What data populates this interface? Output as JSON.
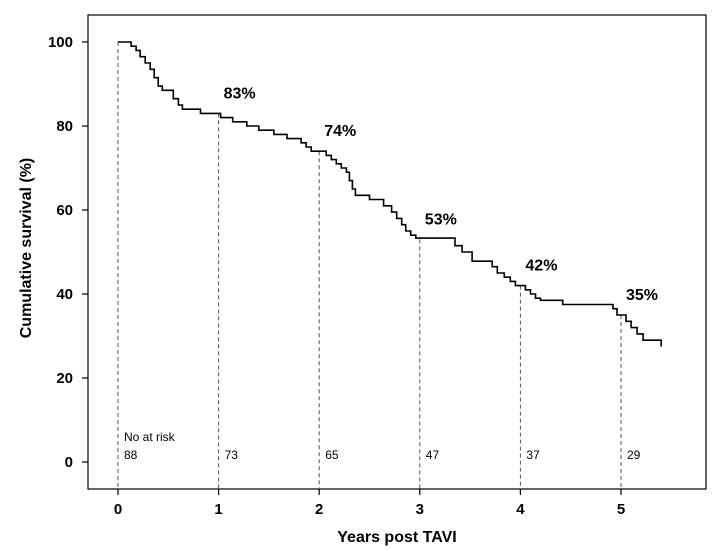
{
  "chart_data": {
    "type": "line",
    "subtype": "kaplan-meier step curve",
    "title": "",
    "xlabel": "Years post TAVI",
    "ylabel": "Cumulative survival (%)",
    "xlim": [
      -0.1,
      5.5
    ],
    "ylim": [
      -2,
      102
    ],
    "x_ticks": [
      0,
      1,
      2,
      3,
      4,
      5
    ],
    "y_ticks": [
      0,
      20,
      40,
      60,
      80,
      100
    ],
    "grid": false,
    "series": [
      {
        "color": "#000000",
        "points": [
          [
            0,
            100
          ],
          [
            0.13,
            100
          ],
          [
            0.13,
            99
          ],
          [
            0.18,
            99
          ],
          [
            0.18,
            98
          ],
          [
            0.22,
            98
          ],
          [
            0.22,
            96.5
          ],
          [
            0.27,
            96.5
          ],
          [
            0.27,
            95
          ],
          [
            0.32,
            95
          ],
          [
            0.32,
            93.5
          ],
          [
            0.36,
            93.5
          ],
          [
            0.36,
            91.5
          ],
          [
            0.4,
            91.5
          ],
          [
            0.4,
            89.5
          ],
          [
            0.44,
            89.5
          ],
          [
            0.44,
            88.5
          ],
          [
            0.55,
            88.5
          ],
          [
            0.55,
            86.5
          ],
          [
            0.6,
            86.5
          ],
          [
            0.6,
            85
          ],
          [
            0.64,
            85
          ],
          [
            0.64,
            84
          ],
          [
            0.82,
            84
          ],
          [
            0.82,
            83
          ],
          [
            1.02,
            83
          ],
          [
            1.02,
            82
          ],
          [
            1.14,
            82
          ],
          [
            1.14,
            81
          ],
          [
            1.28,
            81
          ],
          [
            1.28,
            80
          ],
          [
            1.4,
            80
          ],
          [
            1.4,
            79
          ],
          [
            1.55,
            79
          ],
          [
            1.55,
            78
          ],
          [
            1.68,
            78
          ],
          [
            1.68,
            77
          ],
          [
            1.82,
            77
          ],
          [
            1.82,
            76
          ],
          [
            1.87,
            76
          ],
          [
            1.87,
            75
          ],
          [
            1.92,
            75
          ],
          [
            1.92,
            74
          ],
          [
            2.07,
            74
          ],
          [
            2.07,
            73
          ],
          [
            2.12,
            73
          ],
          [
            2.12,
            72
          ],
          [
            2.17,
            72
          ],
          [
            2.17,
            71
          ],
          [
            2.22,
            71
          ],
          [
            2.22,
            70
          ],
          [
            2.27,
            70
          ],
          [
            2.27,
            69
          ],
          [
            2.3,
            69
          ],
          [
            2.3,
            67
          ],
          [
            2.33,
            67
          ],
          [
            2.33,
            65
          ],
          [
            2.36,
            65
          ],
          [
            2.36,
            63.5
          ],
          [
            2.5,
            63.5
          ],
          [
            2.5,
            62.5
          ],
          [
            2.64,
            62.5
          ],
          [
            2.64,
            61
          ],
          [
            2.72,
            61
          ],
          [
            2.72,
            59.5
          ],
          [
            2.77,
            59.5
          ],
          [
            2.77,
            58
          ],
          [
            2.82,
            58
          ],
          [
            2.82,
            56.5
          ],
          [
            2.86,
            56.5
          ],
          [
            2.86,
            55
          ],
          [
            2.91,
            55
          ],
          [
            2.91,
            54
          ],
          [
            2.96,
            54
          ],
          [
            2.96,
            53.3
          ],
          [
            3.35,
            53.3
          ],
          [
            3.35,
            51.5
          ],
          [
            3.42,
            51.5
          ],
          [
            3.42,
            50
          ],
          [
            3.52,
            50
          ],
          [
            3.52,
            47.8
          ],
          [
            3.72,
            47.8
          ],
          [
            3.72,
            46.5
          ],
          [
            3.77,
            46.5
          ],
          [
            3.77,
            45
          ],
          [
            3.84,
            45
          ],
          [
            3.84,
            44
          ],
          [
            3.9,
            44
          ],
          [
            3.9,
            43
          ],
          [
            3.95,
            43
          ],
          [
            3.95,
            42
          ],
          [
            4.05,
            42
          ],
          [
            4.05,
            41
          ],
          [
            4.1,
            41
          ],
          [
            4.1,
            40
          ],
          [
            4.15,
            40
          ],
          [
            4.15,
            39
          ],
          [
            4.2,
            39
          ],
          [
            4.2,
            38.5
          ],
          [
            4.42,
            38.5
          ],
          [
            4.42,
            37.5
          ],
          [
            4.92,
            37.5
          ],
          [
            4.92,
            36.5
          ],
          [
            4.96,
            36.5
          ],
          [
            4.96,
            35
          ],
          [
            5.05,
            35
          ],
          [
            5.05,
            33.5
          ],
          [
            5.1,
            33.5
          ],
          [
            5.1,
            32
          ],
          [
            5.16,
            32
          ],
          [
            5.16,
            30.5
          ],
          [
            5.22,
            30.5
          ],
          [
            5.22,
            29
          ],
          [
            5.4,
            29
          ],
          [
            5.4,
            27.5
          ]
        ]
      }
    ],
    "annotations": [
      {
        "x": 1,
        "y": 83,
        "text": "83%"
      },
      {
        "x": 2,
        "y": 74,
        "text": "74%"
      },
      {
        "x": 3,
        "y": 53,
        "text": "53%"
      },
      {
        "x": 4,
        "y": 42,
        "text": "42%"
      },
      {
        "x": 5,
        "y": 35,
        "text": "35%"
      }
    ],
    "number_at_risk": {
      "title": "No at risk",
      "x": [
        0,
        1,
        2,
        3,
        4,
        5
      ],
      "values": [
        "88",
        "73",
        "65",
        "47",
        "37",
        "29"
      ]
    }
  }
}
